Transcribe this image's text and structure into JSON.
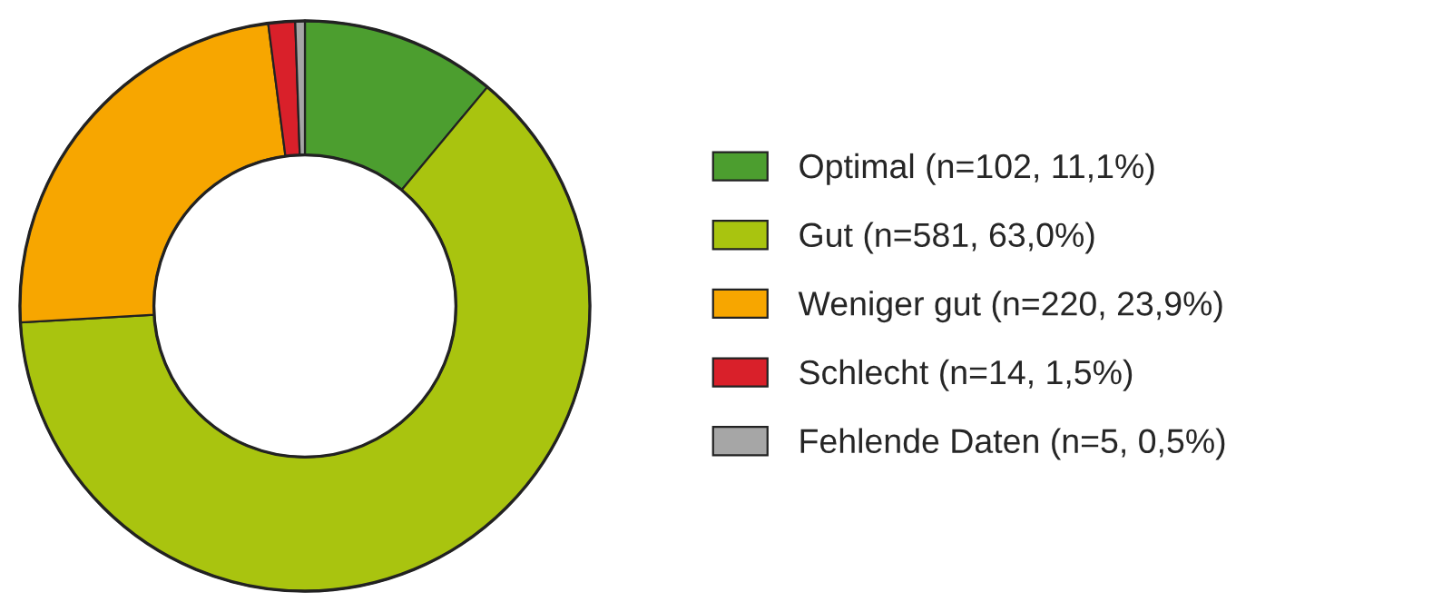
{
  "chart_data": {
    "type": "donut",
    "categories": [
      "Optimal (n=102, 11,1%)",
      "Gut (n=581, 63,0%)",
      "Weniger gut (n=220, 23,9%)",
      "Schlecht (n=14, 1,5%)",
      "Fehlende Daten (n=5, 0,5%)"
    ],
    "values": [
      102,
      581,
      220,
      14,
      5
    ],
    "colors": [
      "#4c9e2f",
      "#a9c40f",
      "#f7a600",
      "#d9202a",
      "#a6a6a6"
    ],
    "legend": "right"
  }
}
